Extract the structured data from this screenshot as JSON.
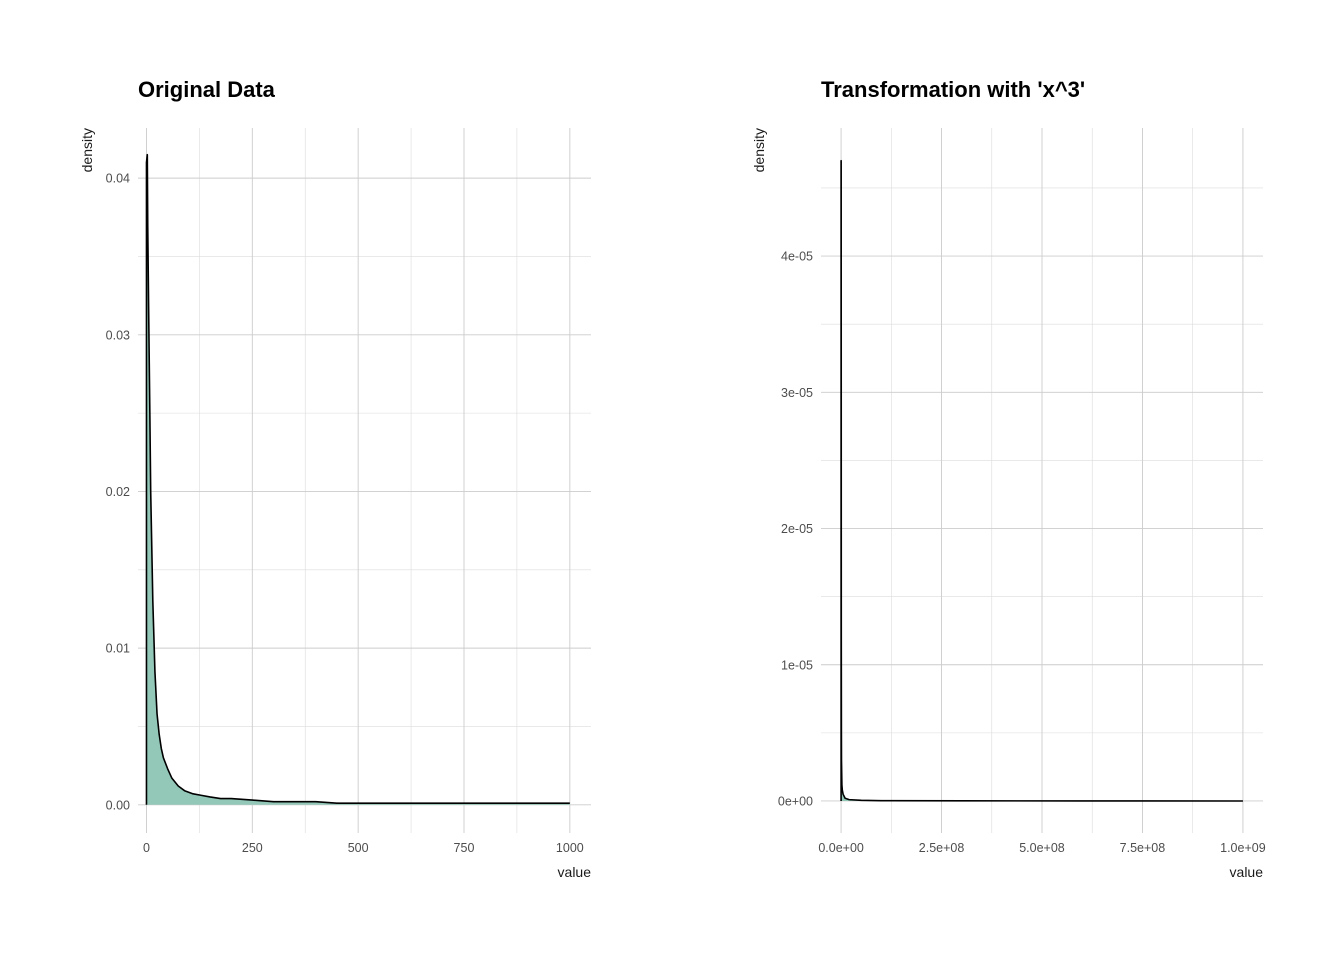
{
  "colors": {
    "fill": "#93c8b9",
    "line": "#000000",
    "grid": "#cccccc"
  },
  "chart_data": [
    {
      "type": "area",
      "title": "Original Data",
      "xlabel": "value",
      "ylabel": "density",
      "xlim": [
        -20,
        1050
      ],
      "ylim": [
        -0.0018,
        0.0432
      ],
      "x_ticks": [
        0,
        250,
        500,
        750,
        1000
      ],
      "x_tick_labels": [
        "0",
        "250",
        "500",
        "750",
        "1000"
      ],
      "y_ticks": [
        0,
        0.01,
        0.02,
        0.03,
        0.04
      ],
      "y_tick_labels": [
        "0.00",
        "0.01",
        "0.02",
        "0.03",
        "0.04"
      ],
      "grid": true,
      "series": [
        {
          "x": [
            0,
            2,
            3,
            5,
            8,
            10,
            15,
            20,
            25,
            30,
            35,
            40,
            50,
            60,
            75,
            90,
            110,
            130,
            150,
            175,
            200,
            250,
            300,
            350,
            400,
            450,
            500,
            600,
            700,
            800,
            900,
            1000
          ],
          "y": [
            0.041,
            0.0415,
            0.037,
            0.032,
            0.025,
            0.02,
            0.013,
            0.0085,
            0.0058,
            0.0045,
            0.0036,
            0.003,
            0.0023,
            0.0017,
            0.0012,
            0.0009,
            0.0007,
            0.0006,
            0.0005,
            0.0004,
            0.0004,
            0.0003,
            0.0002,
            0.0002,
            0.0002,
            0.0001,
            0.0001,
            0.0001,
            0.0001,
            0.0001,
            0.0001,
            0.0001
          ]
        }
      ]
    },
    {
      "type": "area",
      "title": "Transformation with 'x^3'",
      "xlabel": "value",
      "ylabel": "density",
      "xlim": [
        -50000000,
        1050000000
      ],
      "ylim": [
        -2.35e-06,
        4.94e-05
      ],
      "x_ticks": [
        0,
        250000000,
        500000000,
        750000000,
        1000000000
      ],
      "x_tick_labels": [
        "0.0e+00",
        "2.5e+08",
        "5.0e+08",
        "7.5e+08",
        "1.0e+09"
      ],
      "y_ticks": [
        0,
        1e-05,
        2e-05,
        3e-05,
        4e-05
      ],
      "y_tick_labels": [
        "0e+00",
        "1e-05",
        "2e-05",
        "3e-05",
        "4e-05"
      ],
      "grid": true,
      "series": [
        {
          "x": [
            0,
            200000,
            500000,
            800000,
            1000000,
            2000000,
            3000000,
            5000000,
            10000000,
            20000000,
            50000000,
            100000000,
            300000000,
            600000000,
            1000000000
          ],
          "y": [
            4.7e-05,
            4.7e-05,
            1.2e-05,
            5e-06,
            3e-06,
            1.2e-06,
            8e-07,
            5e-07,
            2e-07,
            1e-07,
            5e-08,
            2e-08,
            1e-08,
            5e-09,
            0
          ]
        }
      ]
    }
  ]
}
